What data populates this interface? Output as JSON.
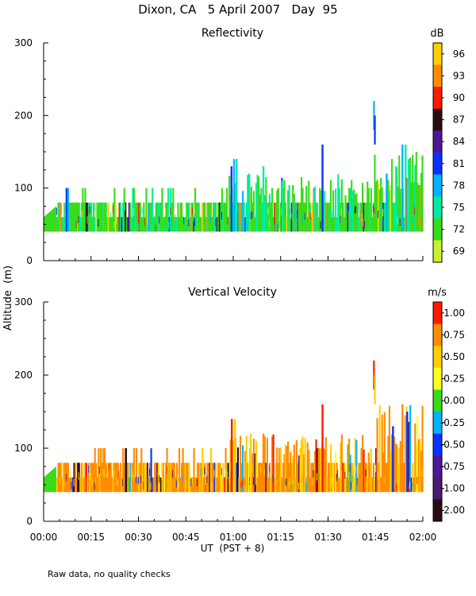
{
  "page_title": "Dixon, CA   5 April 2007   Day  95",
  "footnote": "Raw data, no quality checks",
  "shared_axes": {
    "ylabel": "Altitude  (m)",
    "xlabel": "UT  (PST + 8)",
    "x_ticks": [
      "00:00",
      "00:15",
      "00:30",
      "00:45",
      "01:00",
      "01:15",
      "01:30",
      "01:45",
      "02:00"
    ],
    "x_range_minutes": [
      0,
      120
    ]
  },
  "chart_data": [
    {
      "type": "heatmap",
      "title": "Reflectivity",
      "units": "dB",
      "ylim": [
        0,
        300
      ],
      "y_ticks": [
        "0",
        "100",
        "200",
        "300"
      ],
      "colorbar": {
        "labels": [
          "96",
          "93",
          "90",
          "87",
          "84",
          "81",
          "78",
          "75",
          "72",
          "69"
        ],
        "colors": [
          "#ffd000",
          "#ff8c00",
          "#ff1a00",
          "#2a0c10",
          "#4c1896",
          "#0a32ff",
          "#00b4ff",
          "#00eca0",
          "#38dc18",
          "#ccf02c"
        ]
      },
      "base_band": {
        "start_min": 0,
        "end_min": 120,
        "bottom_m": 40,
        "top_m": 80,
        "dominant": "#38dc18",
        "secondary": "#00eca0"
      },
      "spikes": [
        {
          "t": 7.2,
          "top": 100,
          "color": "#0a32ff"
        },
        {
          "t": 7.7,
          "top": 100,
          "color": "#00b4ff"
        },
        {
          "t": 59.4,
          "top": 130,
          "color": "#0a32ff"
        },
        {
          "t": 60.2,
          "top": 140,
          "color": "#00b4ff"
        },
        {
          "t": 61.0,
          "top": 140,
          "color": "#00eca0"
        },
        {
          "t": 65.0,
          "top": 120,
          "color": "#00eca0"
        },
        {
          "t": 69.5,
          "top": 130,
          "color": "#00eca0"
        },
        {
          "t": 75.5,
          "top": 110,
          "color": "#00eca0"
        },
        {
          "t": 88.2,
          "top": 160,
          "color": "#0a32ff"
        },
        {
          "t": 108.5,
          "top": 120,
          "color": "#00b4ff"
        },
        {
          "t": 111.5,
          "top": 130,
          "color": "#00eca0"
        },
        {
          "t": 113.5,
          "top": 160,
          "color": "#00b4ff"
        },
        {
          "t": 114.5,
          "top": 160,
          "color": "#00eca0"
        },
        {
          "t": 115.5,
          "top": 140,
          "color": "#00eca0"
        }
      ],
      "isolated_echo": [
        {
          "t": 104.5,
          "bottom": 180,
          "top": 220,
          "color": "#00b4ff"
        },
        {
          "t": 104.8,
          "bottom": 160,
          "top": 200,
          "color": "#0a32ff"
        }
      ]
    },
    {
      "type": "heatmap",
      "title": "Vertical Velocity",
      "units": "m/s",
      "ylim": [
        0,
        300
      ],
      "y_ticks": [
        "0",
        "100",
        "200",
        "300"
      ],
      "colorbar": {
        "labels": [
          "1.00",
          "0.75",
          "0.50",
          "0.25",
          "0.00",
          "-0.25",
          "-0.50",
          "-0.75",
          "-1.00",
          "-2.00"
        ],
        "colors": [
          "#ff1a00",
          "#ff8c00",
          "#ffd000",
          "#ffff20",
          "#38dc18",
          "#00b4ff",
          "#0a32ff",
          "#4c1896",
          "#4a1a70",
          "#2a0c10"
        ]
      },
      "base_band": {
        "start_min": 0,
        "end_min": 120,
        "bottom_m": 40,
        "top_m": 80,
        "dominant": "#ff8c00",
        "secondary": "#ffd000"
      },
      "spikes": [
        {
          "t": 26.0,
          "top": 100,
          "color": "#2a0c10"
        },
        {
          "t": 59.5,
          "top": 140,
          "color": "#ff1a00"
        },
        {
          "t": 60.5,
          "top": 140,
          "color": "#ffd000"
        },
        {
          "t": 65.5,
          "top": 120,
          "color": "#ffd000"
        },
        {
          "t": 69.5,
          "top": 120,
          "color": "#ff8c00"
        },
        {
          "t": 88.2,
          "top": 160,
          "color": "#ff1a00"
        },
        {
          "t": 110.5,
          "top": 130,
          "color": "#0a32ff"
        },
        {
          "t": 113.5,
          "top": 160,
          "color": "#ff8c00"
        },
        {
          "t": 115.0,
          "top": 150,
          "color": "#0a32ff"
        }
      ],
      "isolated_echo": [
        {
          "t": 104.5,
          "bottom": 180,
          "top": 220,
          "color": "#ff1a00"
        },
        {
          "t": 104.8,
          "bottom": 160,
          "top": 200,
          "color": "#ffd000"
        }
      ]
    }
  ]
}
